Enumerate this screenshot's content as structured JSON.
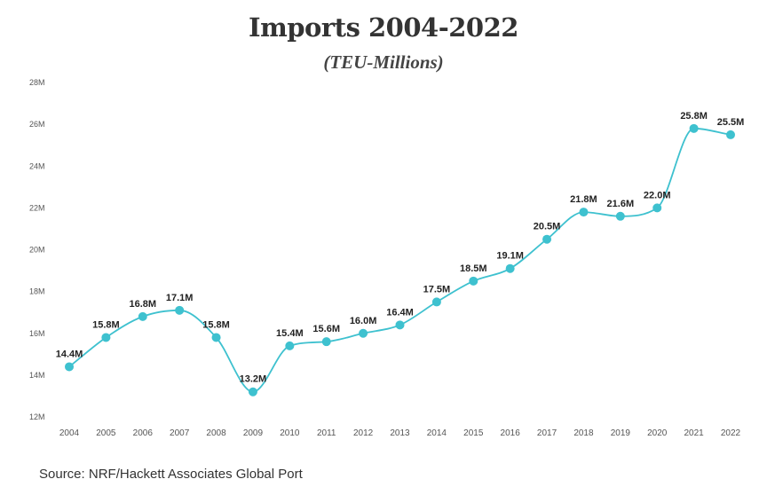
{
  "chart_data": {
    "type": "line",
    "title": "Imports 2004-2022",
    "subtitle": "(TEU-Millions)",
    "x": [
      "2004",
      "2005",
      "2006",
      "2007",
      "2008",
      "2009",
      "2010",
      "2011",
      "2012",
      "2013",
      "2014",
      "2015",
      "2016",
      "2017",
      "2018",
      "2019",
      "2020",
      "2021",
      "2022"
    ],
    "values": [
      14.4,
      15.8,
      16.8,
      17.1,
      15.8,
      13.2,
      15.4,
      15.6,
      16.0,
      16.4,
      17.5,
      18.5,
      19.1,
      20.5,
      21.8,
      21.6,
      22.0,
      25.8,
      25.5
    ],
    "data_labels": [
      "14.4M",
      "15.8M",
      "16.8M",
      "17.1M",
      "15.8M",
      "13.2M",
      "15.4M",
      "15.6M",
      "16.0M",
      "16.4M",
      "17.5M",
      "18.5M",
      "19.1M",
      "20.5M",
      "21.8M",
      "21.6M",
      "22.0M",
      "25.8M",
      "25.5M"
    ],
    "y_ticks": [
      12,
      14,
      16,
      18,
      20,
      22,
      24,
      26,
      28
    ],
    "y_tick_labels": [
      "12M",
      "14M",
      "16M",
      "18M",
      "20M",
      "22M",
      "24M",
      "26M",
      "28M"
    ],
    "ylim": [
      12,
      28
    ],
    "grid": false,
    "legend": "none",
    "line_color": "#3ec1cf"
  },
  "source": "Source: NRF/Hackett Associates Global Port"
}
